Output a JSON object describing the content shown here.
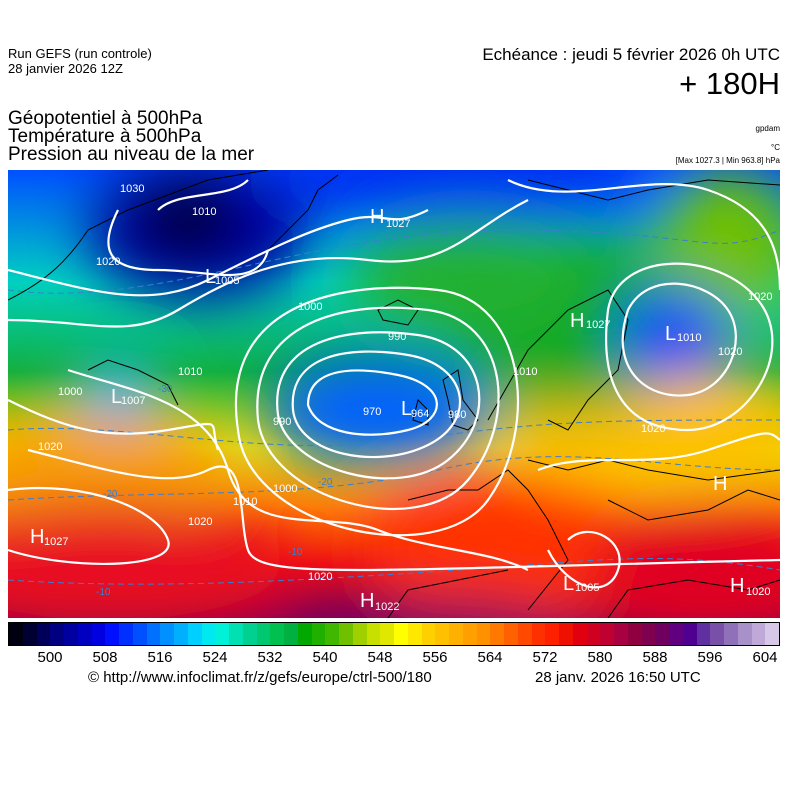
{
  "header": {
    "run_line1": "Run GEFS (run controle)",
    "run_line2": "28 janvier 2026 12Z",
    "echeance": "Echéance : jeudi 5 février 2026 0h UTC",
    "lead_time": "+ 180H"
  },
  "parameters": {
    "line1": "Géopotentiel à 500hPa",
    "line2": "Température à 500hPa",
    "line3": "Pression au niveau de la mer",
    "unit1": "gpdam",
    "unit2": "°C",
    "unit3": "[Max 1027.3 | Min 963.8] hPa"
  },
  "map": {
    "pressure_centers": [
      {
        "type": "H",
        "value": "1027"
      },
      {
        "type": "L",
        "value": "1005"
      },
      {
        "type": "H",
        "value": "1027"
      },
      {
        "type": "L",
        "value": "1010"
      },
      {
        "type": "L",
        "value": "1007"
      },
      {
        "type": "L",
        "value": "964"
      },
      {
        "type": "H",
        "value": "1027"
      },
      {
        "type": "L",
        "value": "1005"
      },
      {
        "type": "H",
        "value": "1022"
      },
      {
        "type": "H",
        "value": "1020"
      },
      {
        "type": "H",
        "value": ""
      }
    ],
    "isobar_labels": [
      "1030",
      "1010",
      "1020",
      "1000",
      "990",
      "970",
      "980",
      "990",
      "1000",
      "1010",
      "1020",
      "1020",
      "1020",
      "1010",
      "1020",
      "1020",
      "1020",
      "1000",
      "1010"
    ],
    "isotherm_labels": [
      "-30",
      "-20",
      "-20",
      "-10",
      "-10"
    ],
    "colors": {
      "isobar": "#ffffff",
      "isotherm": "#3a7fd0",
      "coastline": "#000000"
    }
  },
  "colorbar": {
    "labels": [
      "500",
      "508",
      "516",
      "524",
      "532",
      "540",
      "548",
      "556",
      "564",
      "572",
      "580",
      "588",
      "596",
      "604"
    ],
    "colors": [
      "#000010",
      "#000033",
      "#00005a",
      "#000080",
      "#0000a0",
      "#0000c0",
      "#0000e0",
      "#0010ff",
      "#0030ff",
      "#0050ff",
      "#0070ff",
      "#0090ff",
      "#00b0ff",
      "#00d0ff",
      "#00e8f0",
      "#00f0d8",
      "#00e0b0",
      "#00d090",
      "#00c870",
      "#00c050",
      "#00b040",
      "#00a800",
      "#20b000",
      "#40b800",
      "#70c000",
      "#a0d000",
      "#c8e000",
      "#e0e800",
      "#ffff00",
      "#ffe800",
      "#ffd000",
      "#ffc000",
      "#ffb000",
      "#ffa000",
      "#ff9000",
      "#ff7800",
      "#ff6000",
      "#ff4800",
      "#ff3000",
      "#ff2000",
      "#f01000",
      "#e00010",
      "#d00020",
      "#c00030",
      "#a80040",
      "#900040",
      "#800050",
      "#700060",
      "#600080",
      "#500090",
      "#6030a0",
      "#7850a8",
      "#9070b8",
      "#a890c8",
      "#c0a8d8",
      "#d8c8e8"
    ]
  },
  "footer": {
    "credit": "© http://www.infoclimat.fr/z/gefs/europe/ctrl-500/180",
    "issued": "28 janv. 2026 16:50 UTC"
  }
}
